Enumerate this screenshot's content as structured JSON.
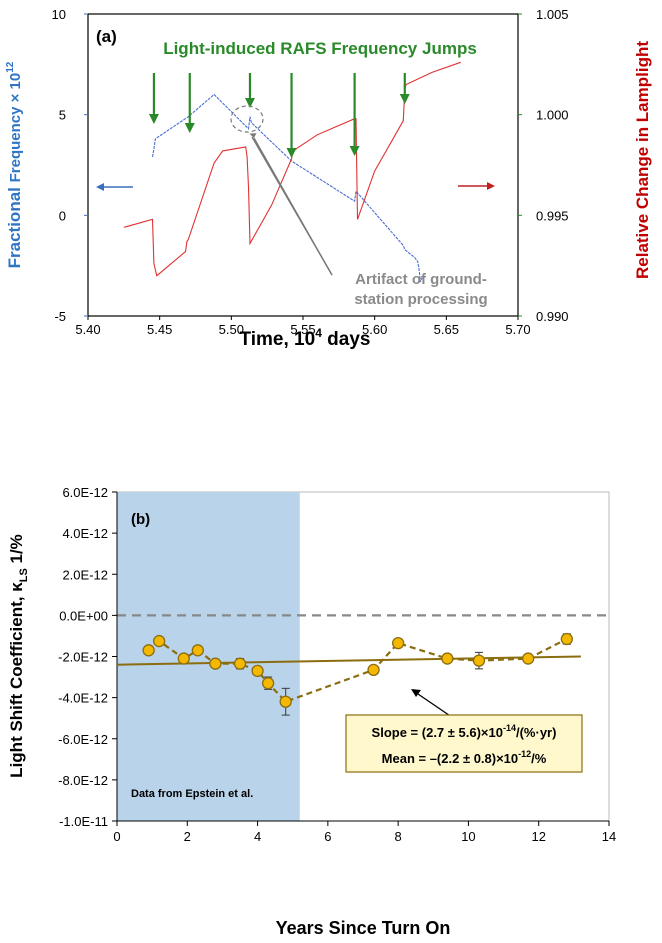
{
  "panel_a": {
    "chart_data": {
      "type": "line",
      "panel_label": "(a)",
      "title": "Light-induced RAFS Frequency Jumps",
      "xlabel": "Time, 10",
      "xlabel_sup": "4",
      "xlabel_end": " days",
      "ylabel_left_part1": "Fractional ",
      "ylabel_left_part2": "Frequency × 10",
      "ylabel_left_sup": "12",
      "ylabel_right": "Relative Change in Lamplight",
      "xlim": [
        5.4,
        5.7
      ],
      "ylim_left": [
        -5,
        10
      ],
      "ylim_right": [
        0.99,
        1.005
      ],
      "x_ticks": [
        "5.40",
        "5.45",
        "5.50",
        "5.55",
        "5.60",
        "5.65",
        "5.70"
      ],
      "y_left_ticks": [
        "-5",
        "0",
        "5",
        "10"
      ],
      "y_right_ticks": [
        "0.990",
        "0.995",
        "1.000",
        "1.005"
      ],
      "annotation": [
        "Artifact of ground-",
        "station processing"
      ],
      "jump_arrows_x": [
        5.446,
        5.471,
        5.513,
        5.542,
        5.586,
        5.621
      ],
      "series": [
        {
          "color": "#4a6fd0",
          "axis": "left",
          "x": [
            5.445,
            5.446,
            5.447,
            5.47,
            5.488,
            5.512,
            5.513,
            5.514,
            5.542,
            5.586,
            5.587,
            5.62,
            5.621,
            5.628,
            5.63,
            5.631,
            5.632,
            5.633
          ],
          "y": [
            2.9,
            3.3,
            3.8,
            4.9,
            6.0,
            4.3,
            4.9,
            4.6,
            2.7,
            0.7,
            1.2,
            -1.5,
            -1.7,
            -2.1,
            -2.3,
            -2.7,
            -3.3,
            -3.1
          ]
        },
        {
          "color": "#e03232",
          "axis": "right",
          "x": [
            5.425,
            5.445,
            5.446,
            5.448,
            5.468,
            5.469,
            5.47,
            5.488,
            5.494,
            5.51,
            5.511,
            5.512,
            5.513,
            5.528,
            5.542,
            5.543,
            5.56,
            5.586,
            5.587,
            5.588,
            5.6,
            5.612,
            5.62,
            5.621,
            5.622,
            5.64,
            5.66
          ],
          "y": [
            0.9944,
            0.9948,
            0.9926,
            0.992,
            0.9932,
            0.9937,
            0.9938,
            0.9976,
            0.9982,
            0.9984,
            0.9979,
            0.9964,
            0.9936,
            0.9955,
            0.9978,
            0.9982,
            0.999,
            0.9998,
            0.9998,
            0.9948,
            0.9972,
            0.9987,
            0.9997,
            1.0013,
            1.0015,
            1.0021,
            1.0026
          ]
        }
      ]
    }
  },
  "panel_b": {
    "chart_data": {
      "type": "scatter",
      "panel_label": "(b)",
      "xlabel": "Years Since Turn On",
      "ylabel": "Light Shift Coefficient, κ",
      "ylabel_sub": "LS",
      "ylabel_end": " 1/%",
      "xlim": [
        0,
        14
      ],
      "ylim": [
        -1e-11,
        6e-12
      ],
      "x_ticks": [
        "0",
        "2",
        "4",
        "6",
        "8",
        "10",
        "12",
        "14"
      ],
      "y_ticks": [
        "6.0E-12",
        "4.0E-12",
        "2.0E-12",
        "0.0E+00",
        "-2.0E-12",
        "-4.0E-12",
        "-6.0E-12",
        "-8.0E-12",
        "-1.0E-11"
      ],
      "shaded_region_x": [
        0.0,
        5.2
      ],
      "shaded_label": "Data from Epstein et al.",
      "fit_line": {
        "x": [
          0.0,
          13.2
        ],
        "y": [
          -2.4e-12,
          -2e-12
        ],
        "color": "#8b6d10"
      },
      "annotation_box": [
        "Slope = (2.7 ± 5.6)×10",
        "-14",
        "/(%·yr)",
        "Mean = –(2.2 ± 0.8)×10",
        "-12",
        "/%"
      ],
      "points": {
        "x": [
          0.9,
          1.2,
          1.9,
          2.3,
          2.8,
          3.5,
          4.0,
          4.3,
          4.8,
          7.3,
          8.0,
          9.4,
          10.3,
          11.7,
          12.8
        ],
        "y": [
          -1.7e-12,
          -1.25e-12,
          -2.1e-12,
          -1.7e-12,
          -2.35e-12,
          -2.35e-12,
          -2.7e-12,
          -3.3e-12,
          -4.2e-12,
          -2.65e-12,
          -1.35e-12,
          -2.1e-12,
          -2.2e-12,
          -2.1e-12,
          -1.15e-12
        ],
        "err": [
          0,
          0,
          0,
          2e-13,
          0,
          2.5e-13,
          0,
          3e-13,
          6.5e-13,
          0,
          2e-13,
          0,
          4e-13,
          0,
          2.5e-13
        ]
      },
      "point_color": "#f5b800",
      "point_stroke": "#8b6d10"
    }
  }
}
